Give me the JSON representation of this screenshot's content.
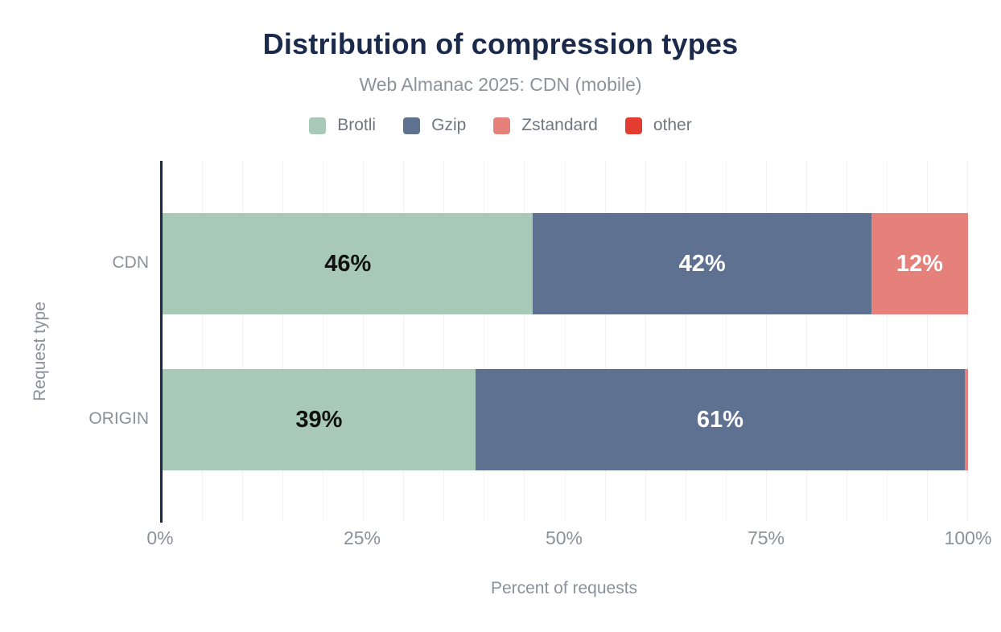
{
  "header": {
    "title": "Distribution of compression types",
    "subtitle": "Web Almanac 2025: CDN (mobile)"
  },
  "legend": [
    {
      "label": "Brotli",
      "color": "#a9c9b8"
    },
    {
      "label": "Gzip",
      "color": "#5f7190"
    },
    {
      "label": "Zstandard",
      "color": "#e5807a"
    },
    {
      "label": "other",
      "color": "#e33d31"
    }
  ],
  "chart_data": {
    "type": "bar",
    "orientation": "horizontal",
    "stacked": true,
    "title": "Distribution of compression types",
    "subtitle": "Web Almanac 2025: CDN (mobile)",
    "xlabel": "Percent of requests",
    "ylabel": "Request type",
    "categories": [
      "CDN",
      "ORIGIN"
    ],
    "series": [
      {
        "name": "Brotli",
        "color": "#a9c9b8",
        "values": [
          46,
          39
        ],
        "labels": [
          "46%",
          "39%"
        ],
        "label_color": "#111111"
      },
      {
        "name": "Gzip",
        "color": "#5f7190",
        "values": [
          42,
          61
        ],
        "labels": [
          "42%",
          "61%"
        ],
        "label_color": "#ffffff"
      },
      {
        "name": "Zstandard",
        "color": "#e5807a",
        "values": [
          12,
          0.4
        ],
        "labels": [
          "12%",
          ""
        ],
        "label_color": "#ffffff"
      },
      {
        "name": "other",
        "color": "#e33d31",
        "values": [
          0,
          0
        ],
        "labels": [
          "",
          ""
        ],
        "label_color": "#ffffff"
      }
    ],
    "xlim": [
      0,
      100
    ],
    "xticks": [
      {
        "value": 0,
        "label": "0%"
      },
      {
        "value": 25,
        "label": "25%"
      },
      {
        "value": 50,
        "label": "50%"
      },
      {
        "value": 75,
        "label": "75%"
      },
      {
        "value": 100,
        "label": "100%"
      }
    ],
    "grid_step": 5,
    "grid_on": true,
    "legend_position": "top"
  },
  "colors": {
    "title": "#1b2a4a",
    "axis_line": "#1b2a4a",
    "muted_text": "#8b919b",
    "grid": "#f2f2f2"
  }
}
